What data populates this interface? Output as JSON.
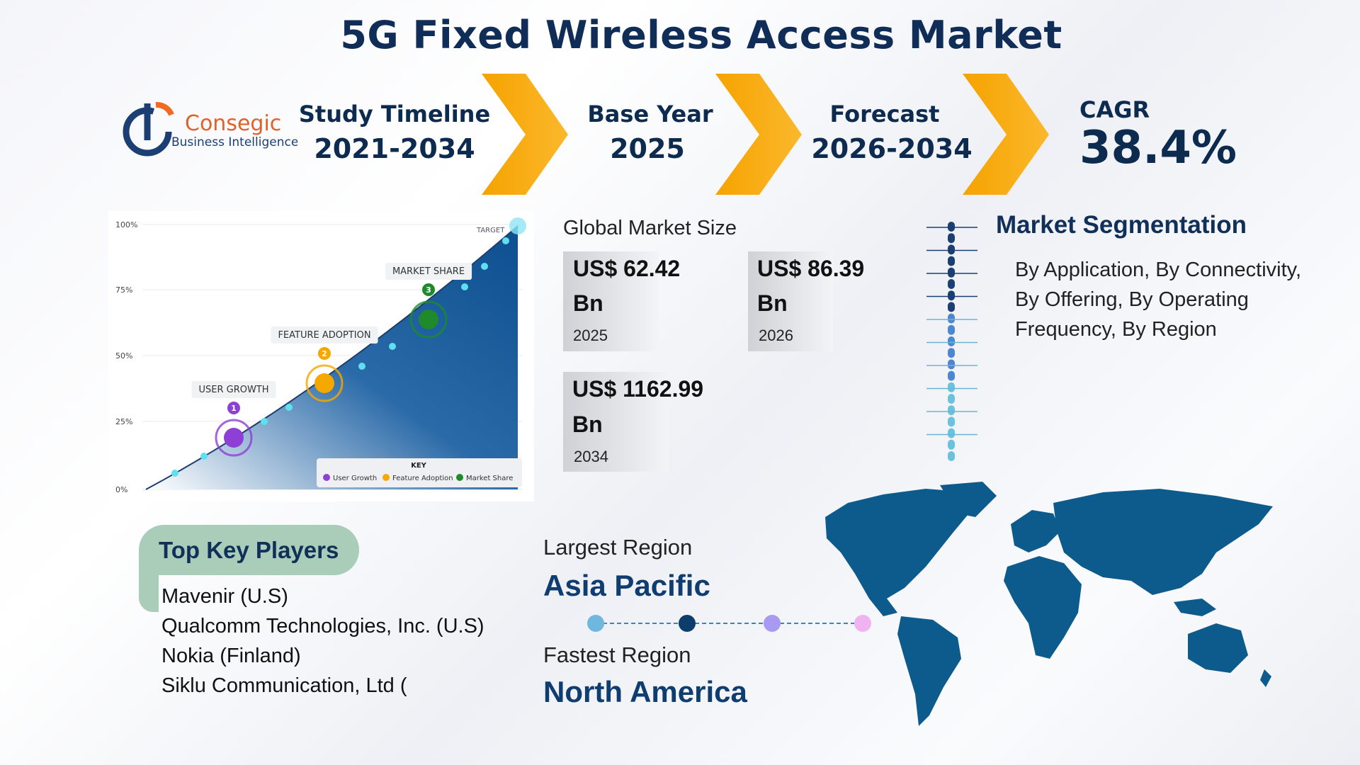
{
  "header": {
    "title": "5G Fixed Wireless Access Market"
  },
  "logo": {
    "name": "Consegic",
    "tagline": "Business Intelligence"
  },
  "timeline": [
    {
      "label": "Study Timeline",
      "value": "2021-2034"
    },
    {
      "label": "Base Year",
      "value": "2025"
    },
    {
      "label": "Forecast",
      "value": "2026-2034"
    },
    {
      "label": "CAGR",
      "value": "38.4%"
    }
  ],
  "illustration": {
    "yticks": [
      "100%",
      "75%",
      "50%",
      "25%",
      "0%"
    ],
    "target": "TARGET",
    "milestones": [
      {
        "number": "1",
        "label": "USER GROWTH"
      },
      {
        "number": "2",
        "label": "FEATURE ADOPTION"
      },
      {
        "number": "3",
        "label": "MARKET SHARE"
      }
    ],
    "key": {
      "title": "KEY",
      "items": [
        "User Growth",
        "Feature Adoption",
        "Market Share"
      ]
    }
  },
  "market_size": {
    "title": "Global Market Size",
    "items": [
      {
        "value": "US$ 62.42",
        "unit": "Bn",
        "year": "2025"
      },
      {
        "value": "US$ 86.39",
        "unit": "Bn",
        "year": "2026"
      },
      {
        "value": "US$ 1162.99",
        "unit": "Bn",
        "year": "2034"
      }
    ]
  },
  "segmentation": {
    "title": "Market Segmentation",
    "text": "By Application, By Connectivity, By Offering, By Operating Frequency, By Region"
  },
  "key_players": {
    "title": "Top Key Players",
    "items": [
      "Mavenir (U.S)",
      "Qualcomm Technologies, Inc. (U.S)",
      "Nokia (Finland)",
      "Siklu Communication, Ltd ("
    ]
  },
  "regions": {
    "largest_label": "Largest Region",
    "largest": "Asia Pacific",
    "fastest_label": "Fastest Region",
    "fastest": "North America"
  }
}
